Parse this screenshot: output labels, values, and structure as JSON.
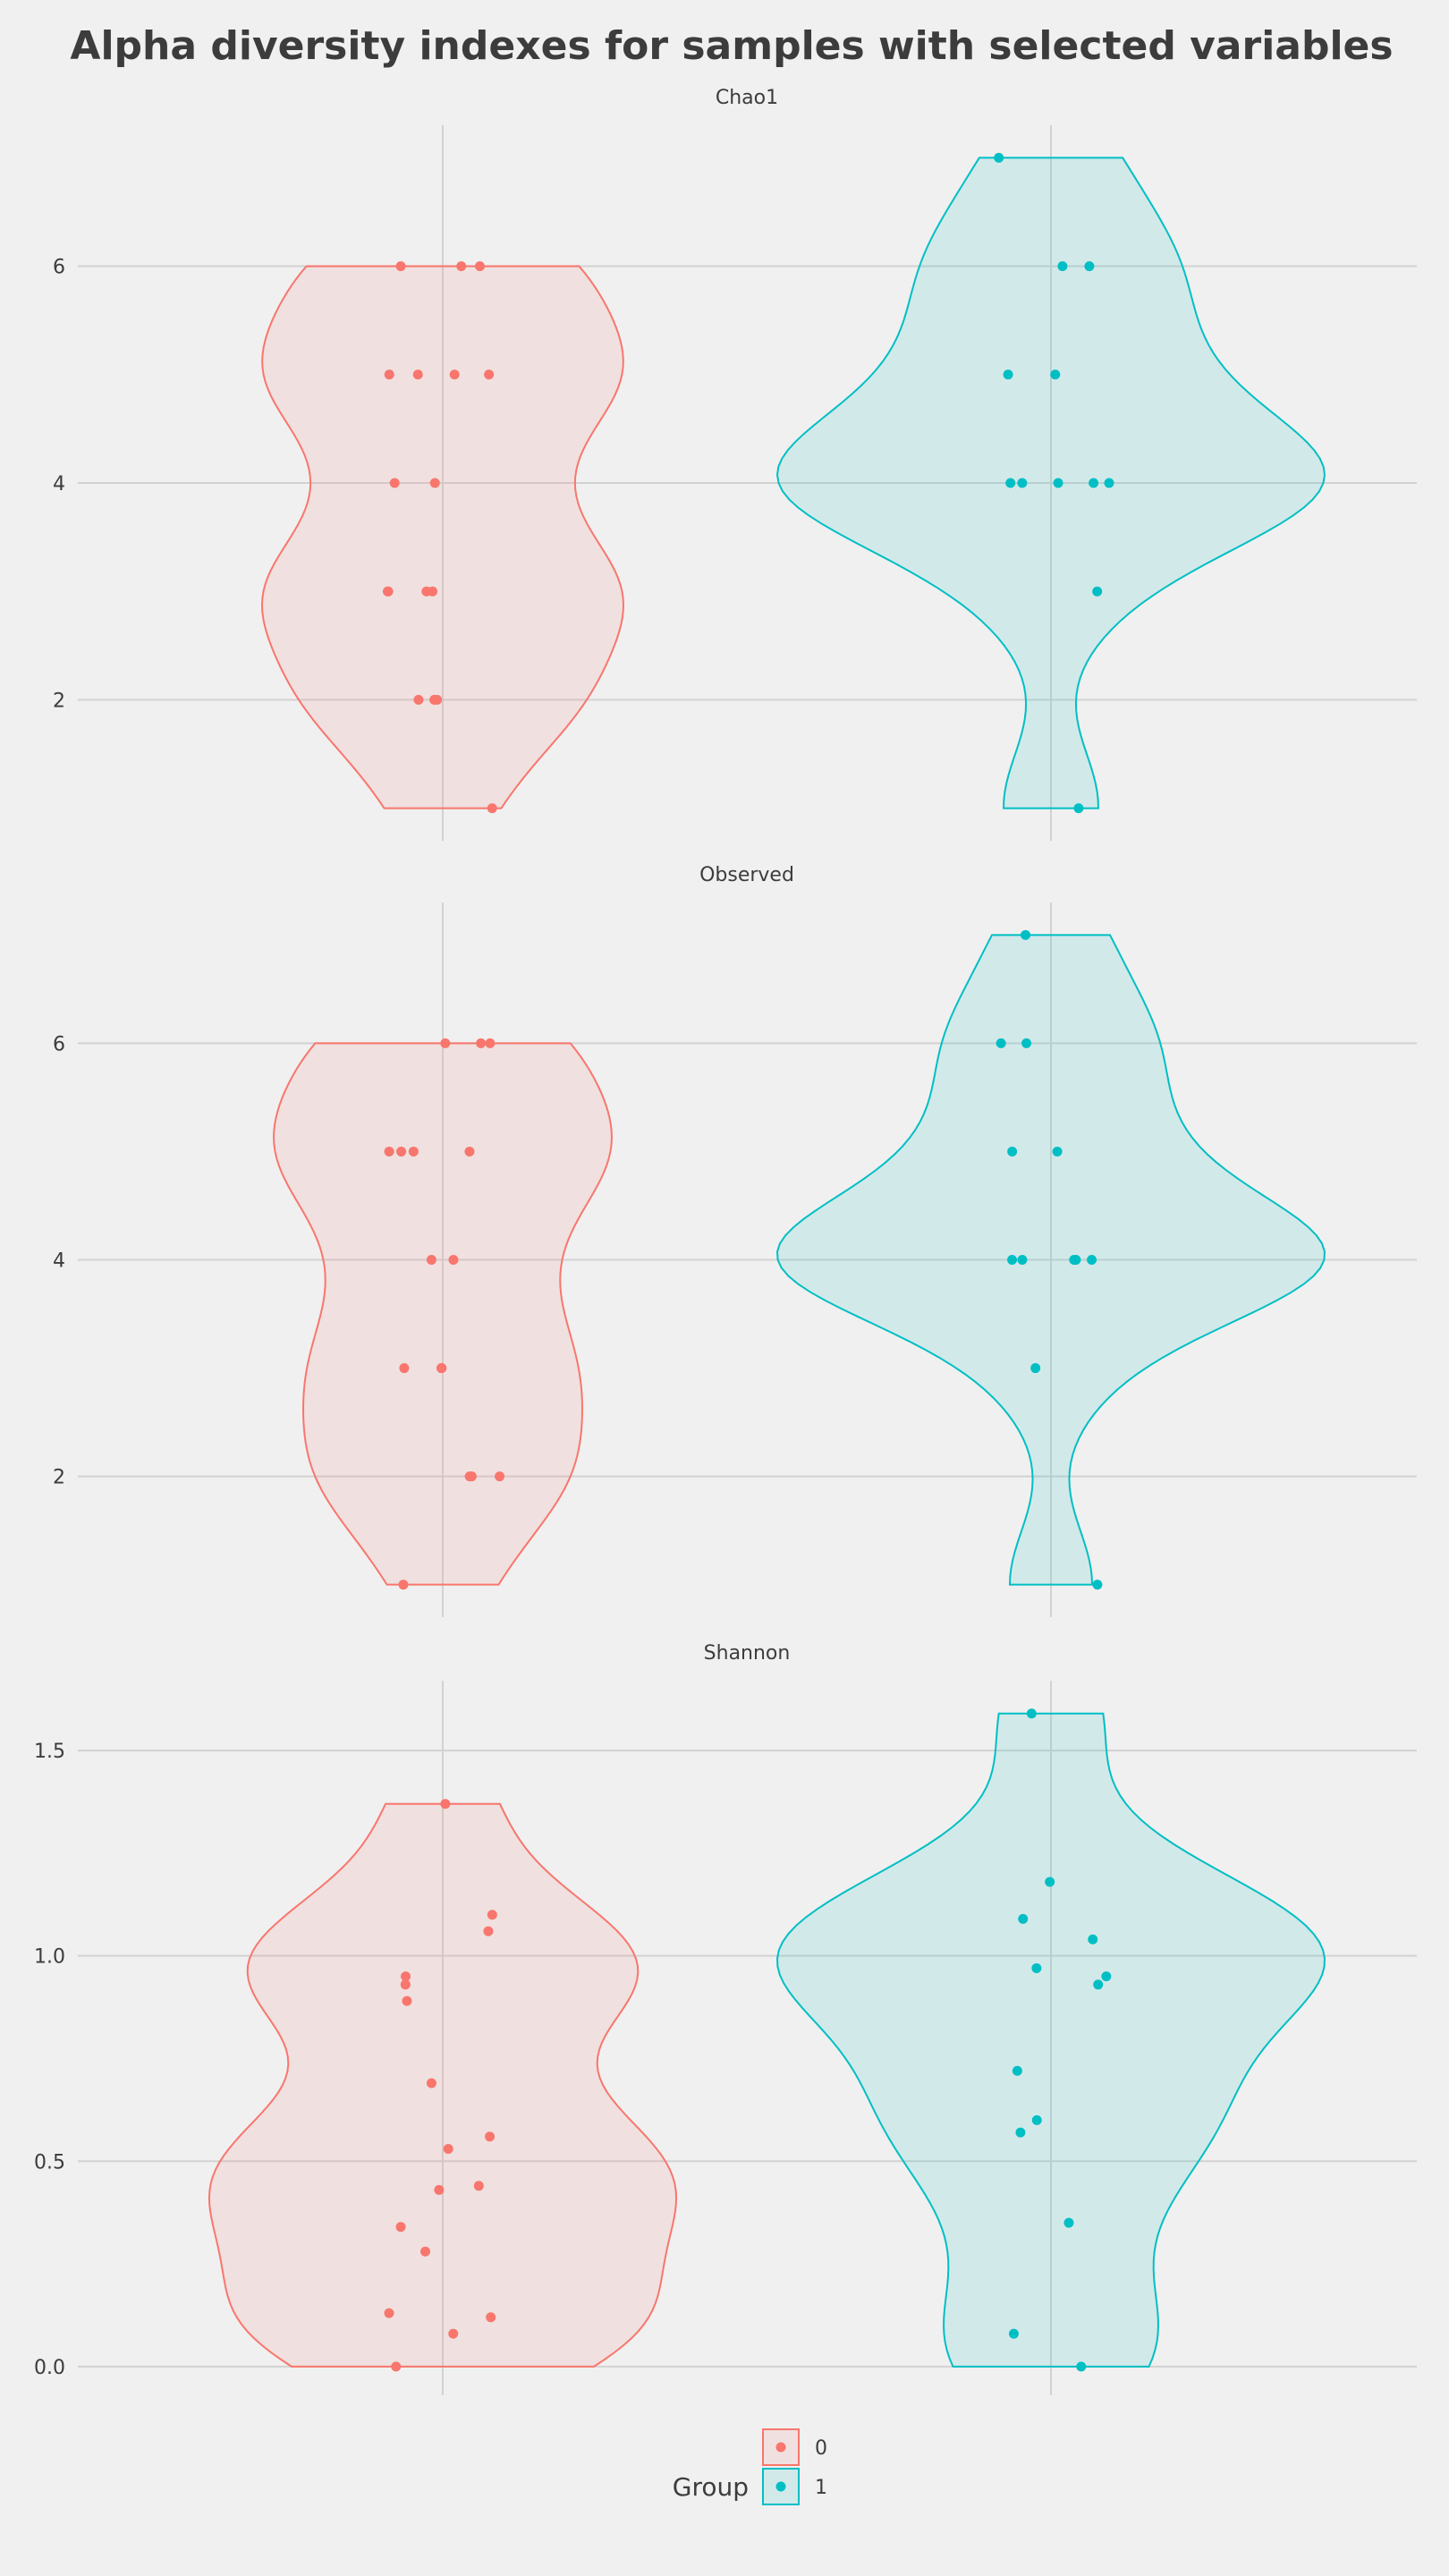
{
  "chart_data": {
    "type": "violin",
    "title": "Alpha diversity indexes for samples with selected variables",
    "colors": {
      "0": "#F8766D",
      "1": "#00BFC4"
    },
    "legend": {
      "title": "Group",
      "position": "bottom",
      "entries": [
        "0",
        "1"
      ]
    },
    "panels": [
      {
        "name": "Chao1",
        "ylim": [
          0.7,
          7.3
        ],
        "yticks": [
          2,
          4,
          6
        ],
        "ytick_labels": [
          "2",
          "4",
          "6"
        ],
        "series": [
          {
            "group": "0",
            "values": [
              6,
              6,
              6,
              5,
              5,
              5,
              5,
              4,
              4,
              3,
              3,
              3,
              3,
              2,
              2,
              2,
              1
            ]
          },
          {
            "group": "1",
            "values": [
              7,
              6,
              6,
              5,
              5,
              4,
              4,
              4,
              4,
              4,
              3,
              1
            ]
          }
        ]
      },
      {
        "name": "Observed",
        "ylim": [
          0.7,
          7.3
        ],
        "yticks": [
          2,
          4,
          6
        ],
        "ytick_labels": [
          "2",
          "4",
          "6"
        ],
        "series": [
          {
            "group": "0",
            "values": [
              6,
              6,
              6,
              5,
              5,
              5,
              5,
              4,
              4,
              3,
              3,
              3,
              2,
              2,
              2,
              1
            ]
          },
          {
            "group": "1",
            "values": [
              7,
              6,
              6,
              5,
              5,
              4,
              4,
              4,
              4,
              4,
              4,
              3,
              1
            ]
          }
        ]
      },
      {
        "name": "Shannon",
        "ylim": [
          -0.07,
          1.67
        ],
        "yticks": [
          0,
          0.5,
          1.0,
          1.5
        ],
        "ytick_labels": [
          "0.0",
          "0.5",
          "1.0",
          "1.5"
        ],
        "series": [
          {
            "group": "0",
            "values": [
              1.37,
              1.1,
              1.06,
              0.95,
              0.93,
              0.89,
              0.69,
              0.56,
              0.53,
              0.44,
              0.43,
              0.34,
              0.28,
              0.13,
              0.12,
              0.08,
              0.0
            ]
          },
          {
            "group": "1",
            "values": [
              1.59,
              1.18,
              1.09,
              1.04,
              0.97,
              0.95,
              0.93,
              0.72,
              0.6,
              0.57,
              0.35,
              0.08,
              0.0
            ]
          }
        ]
      }
    ]
  }
}
